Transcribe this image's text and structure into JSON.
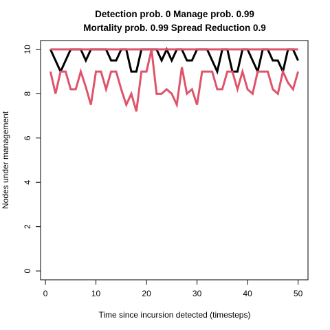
{
  "chart_data": {
    "type": "line",
    "title_line1": "Detection prob. 0 Manage prob. 0.99",
    "title_line2": "Mortality prob. 0.99 Spread Reduction 0.9",
    "xlabel": "Time since incursion detected (timesteps)",
    "ylabel": "Nodes under management",
    "xlim": [
      1,
      50
    ],
    "ylim": [
      0,
      10
    ],
    "xticks": [
      0,
      10,
      20,
      30,
      40,
      50
    ],
    "yticks": [
      0,
      2,
      4,
      6,
      8,
      10
    ],
    "grid": false,
    "legend": "none",
    "series": [
      {
        "color": "#000000",
        "x": [
          1,
          2,
          3,
          4,
          5,
          6,
          7,
          8,
          9,
          10,
          11,
          12,
          13,
          14,
          15,
          16,
          17,
          18,
          19,
          20,
          21,
          22,
          23,
          24,
          25,
          26,
          27,
          28,
          29,
          30,
          31,
          32,
          33,
          34,
          35,
          36,
          37,
          38,
          39,
          40,
          41,
          42,
          43,
          44,
          45,
          46,
          47,
          48,
          49,
          50
        ],
        "values": [
          10,
          9.5,
          9,
          9.5,
          10,
          10,
          10,
          9.5,
          10,
          10,
          10,
          10,
          9.5,
          9.5,
          10,
          10,
          9,
          9,
          10,
          10,
          10,
          10,
          9.5,
          10,
          9.5,
          10,
          10,
          9.5,
          9.5,
          10,
          10,
          10,
          9.5,
          9,
          10,
          10,
          9,
          9,
          10,
          10,
          9.5,
          9,
          10,
          10,
          9.5,
          9.5,
          9,
          10,
          10,
          9.5
        ]
      },
      {
        "color": "#DF536B",
        "x": [
          1,
          2,
          3,
          4,
          5,
          6,
          7,
          8,
          9,
          10,
          11,
          12,
          13,
          14,
          15,
          16,
          17,
          18,
          19,
          20,
          21,
          22,
          23,
          24,
          25,
          26,
          27,
          28,
          29,
          30,
          31,
          32,
          33,
          34,
          35,
          36,
          37,
          38,
          39,
          40,
          41,
          42,
          43,
          44,
          45,
          46,
          47,
          48,
          49,
          50
        ],
        "values": [
          9,
          8,
          9,
          9,
          8.2,
          8.2,
          9,
          8.3,
          7.5,
          9,
          9,
          8.2,
          9,
          9,
          8.2,
          7.5,
          8,
          7.2,
          9,
          9,
          10,
          8,
          8,
          8.2,
          8,
          7.5,
          9.2,
          8,
          8.2,
          7.5,
          9,
          9,
          9,
          8.2,
          8.2,
          9,
          9,
          8.2,
          9,
          8.2,
          8,
          9,
          9,
          9,
          8.2,
          8,
          9,
          8.5,
          8.2,
          9
        ]
      },
      {
        "color": "#DF536B",
        "x": [
          1,
          50
        ],
        "values": [
          10,
          10
        ]
      }
    ]
  }
}
